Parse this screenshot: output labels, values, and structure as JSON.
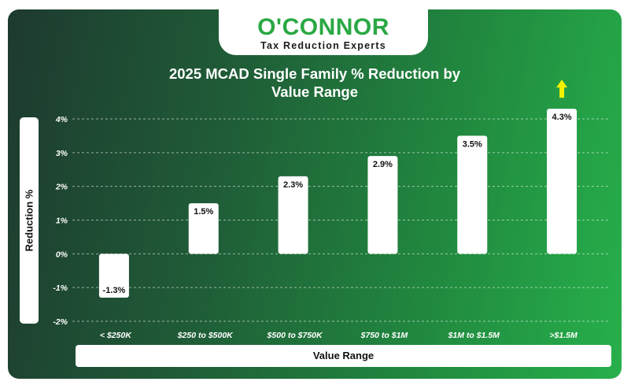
{
  "logo": {
    "name": "O'CONNOR",
    "tagline": "Tax Reduction Experts"
  },
  "colors": {
    "brand_green": "#2aa844",
    "bar": "#ffffff",
    "arrow": "#f2f200"
  },
  "chart_data": {
    "type": "bar",
    "title_line1": "2025 MCAD Single Family % Reduction by",
    "title_line2": "Value Range",
    "xlabel": "Value Range",
    "ylabel": "Reduction %",
    "categories": [
      "< $250K",
      "$250 to $500K",
      "$500 to $750K",
      "$750 to $1M",
      "$1M to $1.5M",
      ">$1.5M"
    ],
    "values": [
      -1.3,
      1.5,
      2.3,
      2.9,
      3.5,
      4.3
    ],
    "data_labels": [
      "-1.3%",
      "1.5%",
      "2.3%",
      "2.9%",
      "3.5%",
      "4.3%"
    ],
    "ylim": [
      -2,
      4
    ],
    "yticks": [
      4,
      3,
      2,
      1,
      0,
      -1,
      -2
    ],
    "ytick_labels": [
      "4%",
      "3%",
      "2%",
      "1%",
      "0%",
      "-1%",
      "-2%"
    ],
    "grid": true,
    "annotation": "up-arrow-icon"
  }
}
